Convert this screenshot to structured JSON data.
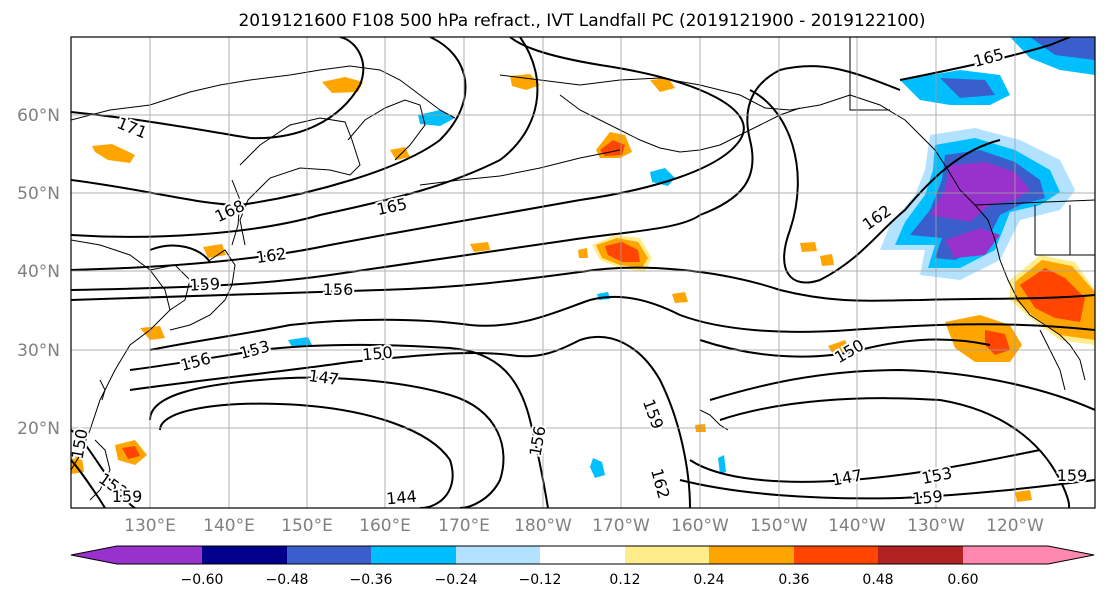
{
  "title": "2019121600 F108 500 hPa refract., IVT Landfall PC (2019121900 - 2019122100)",
  "lat_labels": [
    "60°N",
    "50°N",
    "40°N",
    "30°N",
    "20°N"
  ],
  "lon_labels": [
    "130°E",
    "140°E",
    "150°E",
    "160°E",
    "170°E",
    "180°W",
    "170°W",
    "160°W",
    "150°W",
    "140°W",
    "130°W",
    "120°W"
  ],
  "contour_labels": [
    "171",
    "168",
    "165",
    "165",
    "162",
    "162",
    "159",
    "156",
    "156",
    "153",
    "150",
    "150",
    "147",
    "147",
    "153",
    "159",
    "162",
    "159",
    "156",
    "159",
    "144",
    "150",
    "153",
    "159",
    "159"
  ],
  "colorbar": {
    "colors": [
      "#9932cc",
      "#00008b",
      "#3a5fcd",
      "#00bfff",
      "#b2e2ff",
      "#ffffff",
      "#ffec8b",
      "#ffa500",
      "#ff4500",
      "#b22222",
      "#ff88b0"
    ],
    "tick_labels": [
      "−0.60",
      "−0.48",
      "−0.36",
      "−0.24",
      "−0.12",
      "0.12",
      "0.24",
      "0.36",
      "0.48",
      "0.60"
    ]
  },
  "colors": {
    "contour": "#000000",
    "grid": "#a0a0a0",
    "coast": "#000000",
    "axis_label": "#808080"
  }
}
